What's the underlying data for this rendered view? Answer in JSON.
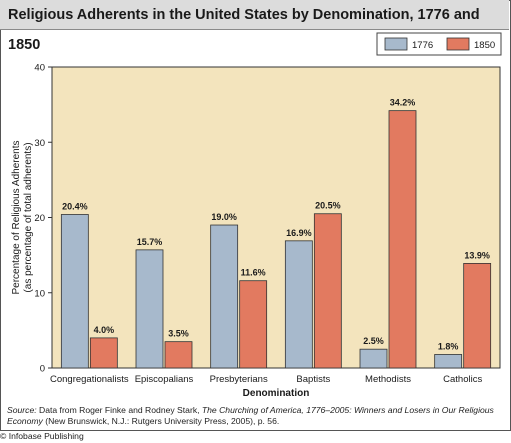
{
  "title": "Religious Adherents in the United States by Denomination, 1776 and 1850",
  "chart_data": {
    "type": "bar",
    "categories": [
      "Congregationalists",
      "Episcopalians",
      "Presbyterians",
      "Baptists",
      "Methodists",
      "Catholics"
    ],
    "series": [
      {
        "name": "1776",
        "values": [
          20.4,
          15.7,
          19.0,
          16.9,
          2.5,
          1.8
        ],
        "labels": [
          "20.4%",
          "15.7%",
          "19.0%",
          "16.9%",
          "2.5%",
          "1.8%"
        ],
        "color": "#a7b9cc"
      },
      {
        "name": "1850",
        "values": [
          4.0,
          3.5,
          11.6,
          20.5,
          34.2,
          13.9
        ],
        "labels": [
          "4.0%",
          "3.5%",
          "11.6%",
          "20.5%",
          "34.2%",
          "13.9%"
        ],
        "color": "#e27a60"
      }
    ],
    "xlabel": "Denomination",
    "ylabel_line1": "Percentage of Religious Adherents",
    "ylabel_line2": "(as percentage of total adherents)",
    "ylim": [
      0,
      40
    ],
    "yticks": [
      0,
      10,
      20,
      30,
      40
    ],
    "grid": false,
    "legend": "top-right",
    "plot_background": "#f3e4bd"
  },
  "source_label": "Source:",
  "source_text_a": "Data from Roger Finke and Rodney Stark,",
  "source_book": "The Churching of America, 1776–2005: Winners and Losers in Our Religious Economy",
  "source_text_b": "(New Brunswick, N.J.: Rutgers University Press, 2005), p. 56.",
  "credit": "© Infobase Publishing"
}
